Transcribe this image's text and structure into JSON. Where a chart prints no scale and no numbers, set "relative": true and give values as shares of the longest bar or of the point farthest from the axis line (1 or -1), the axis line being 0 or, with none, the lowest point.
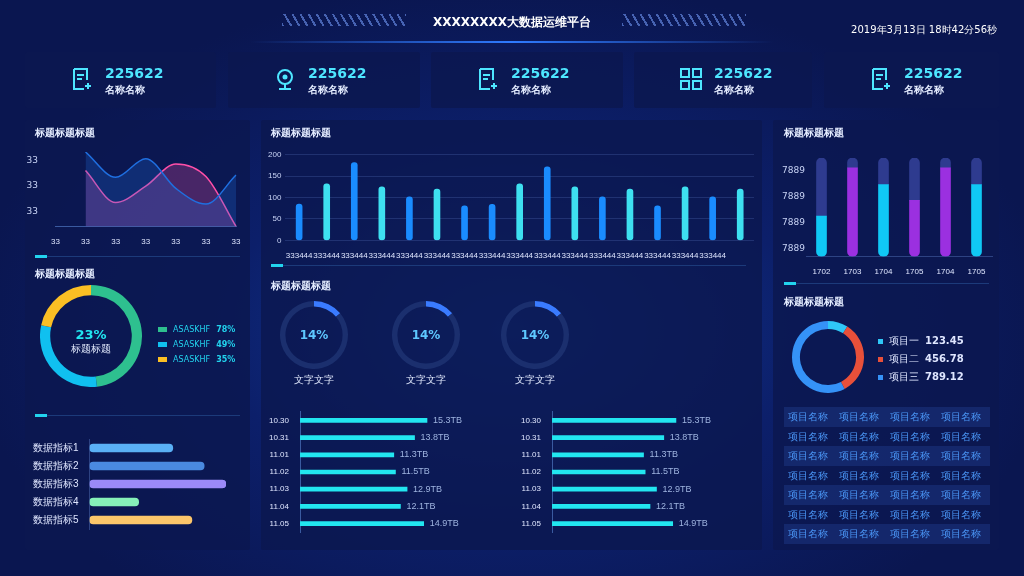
{
  "chart_data": [
    {
      "type": "other",
      "title": "XXXXXXXX大数据运维平台",
      "annotations": [
        "2019年3月13日  18时42分56秒"
      ]
    },
    {
      "type": "other",
      "annotations": [
        "225622",
        "名称名称",
        "225622",
        "名称名称",
        "225622",
        "名称名称",
        "225622",
        "名称名称",
        "225622",
        "名称名称"
      ]
    },
    {
      "type": "area",
      "title": "标题标题标题",
      "categories": [
        "33",
        "33",
        "33",
        "33",
        "33",
        "33",
        "33"
      ],
      "relative": true,
      "annotations": [
        "33",
        "33",
        "33"
      ],
      "series": [
        {
          "color": "#1f6fe0",
          "values": [
            null,
            1.0,
            0.66,
            0.91,
            0.51,
            0.3,
            0.69
          ]
        },
        {
          "color": "#ff4fa8",
          "values": [
            null,
            0.75,
            0.32,
            0.54,
            0.84,
            0.67,
            0
          ]
        }
      ]
    },
    {
      "type": "bar",
      "title": "标题标题标题",
      "categories": [
        "333444",
        "333444",
        "333444",
        "333444",
        "333444",
        "333444",
        "333444",
        "333444",
        "333444",
        "333444",
        "333444",
        "333444",
        "333444",
        "333444",
        "333444",
        "333444",
        null
      ],
      "values": [
        85,
        132,
        182,
        125,
        102,
        120,
        81,
        84,
        132,
        172,
        125,
        102,
        120,
        81,
        125,
        102,
        120
      ],
      "colors": [
        "#1a8cff",
        "#3ee0f0",
        "#1a8cff",
        "#3ee0f0",
        "#1a8cff",
        "#3ee0f0",
        "#1a8cff",
        "#1a8cff",
        "#3ee0f0",
        "#1a8cff",
        "#3ee0f0",
        "#1a8cff",
        "#3ee0f0",
        "#1a8cff",
        "#3ee0f0",
        "#1a8cff",
        "#3ee0f0"
      ],
      "ylim": [
        0,
        200
      ],
      "yticks": [
        0,
        50,
        100,
        150,
        200
      ],
      "grid": "y"
    },
    {
      "type": "bar",
      "title": "标题标题标题",
      "categories": [
        "1702",
        "1703",
        "1704",
        "1705",
        "1704",
        "1705"
      ],
      "stacked": true,
      "relative": true,
      "annotations": [
        "7889",
        "7889",
        "7889",
        "7889"
      ],
      "series": [
        {
          "colors": [
            "#10c8f5",
            "#9b30e0",
            "#10c8f5",
            "#9b30e0",
            "#9b30e0",
            "#10c8f5"
          ],
          "values": [
            0.41,
            0.9,
            0.73,
            0.57,
            0.9,
            0.73
          ]
        },
        {
          "color": "#2e3b8f",
          "values": [
            0.59,
            0.1,
            0.27,
            0.43,
            0.1,
            0.27
          ]
        }
      ]
    },
    {
      "type": "donut",
      "title": "标题标题标题",
      "categories": [
        "ASASKHF",
        "ASASKHF",
        "ASASKHF"
      ],
      "values": [
        78,
        49,
        35
      ],
      "colors": [
        "#2ec08f",
        "#10c0f0",
        "#fbbf24"
      ],
      "value_labels": [
        "78%",
        "49%",
        "35%"
      ],
      "legend": "right",
      "annotations": [
        "23%",
        "标题标题"
      ]
    },
    {
      "type": "donut",
      "title": "标题标题标题",
      "categories": [
        null,
        null
      ],
      "values": [
        14,
        86
      ],
      "colors": [
        "#3a7bff",
        "#1b2f6e"
      ],
      "annotations": [
        "14%",
        "文字文字"
      ]
    },
    {
      "type": "donut",
      "categories": [
        null,
        null
      ],
      "values": [
        14,
        86
      ],
      "colors": [
        "#3a7bff",
        "#1b2f6e"
      ],
      "annotations": [
        "14%",
        "文字文字"
      ]
    },
    {
      "type": "donut",
      "categories": [
        null,
        null
      ],
      "values": [
        14,
        86
      ],
      "colors": [
        "#3a7bff",
        "#1b2f6e"
      ],
      "annotations": [
        "14%",
        "文字文字"
      ]
    },
    {
      "type": "donut",
      "title": "标题标题标题",
      "categories": [
        "项目一",
        "项目二",
        "项目三"
      ],
      "values": [
        123.45,
        456.78,
        789.12
      ],
      "colors": [
        "#2fc7f7",
        "#e8503a",
        "#3592f7"
      ],
      "value_labels": [
        "123.45",
        "456.78",
        "789.12"
      ],
      "legend": "right"
    },
    {
      "type": "bar",
      "orientation": "horizontal",
      "relative": true,
      "categories": [
        "数据指标1",
        "数据指标2",
        "数据指标3",
        "数据指标4",
        "数据指标5"
      ],
      "values": [
        0.61,
        0.84,
        1,
        0.36,
        0.75
      ],
      "colors": [
        "#5ab0f5",
        "#4a8ae0",
        "#9b8af8",
        "#86f0b8",
        "#fcc66a"
      ]
    },
    {
      "type": "bar",
      "orientation": "horizontal",
      "categories": [
        "10.30",
        "10.31",
        "11.01",
        "11.02",
        "11.03",
        "11.04",
        "11.05"
      ],
      "values": [
        15.3,
        13.8,
        11.3,
        11.5,
        12.9,
        12.1,
        14.9
      ],
      "value_labels": [
        "15.3TB",
        "13.8TB",
        "11.3TB",
        "11.5TB",
        "12.9TB",
        "12.1TB",
        "14.9TB"
      ],
      "color": "#22e6f0",
      "tick_labels": "y"
    },
    {
      "type": "bar",
      "orientation": "horizontal",
      "categories": [
        "10.30",
        "10.31",
        "11.01",
        "11.02",
        "11.03",
        "11.04",
        "11.05"
      ],
      "values": [
        15.3,
        13.8,
        11.3,
        11.5,
        12.9,
        12.1,
        14.9
      ],
      "value_labels": [
        "15.3TB",
        "13.8TB",
        "11.3TB",
        "11.5TB",
        "12.9TB",
        "12.1TB",
        "14.9TB"
      ],
      "color": "#22e6f0",
      "tick_labels": "y"
    },
    {
      "type": "other",
      "annotations": [
        "项目名称",
        "项目名称",
        "项目名称",
        "项目名称",
        "项目名称",
        "项目名称",
        "项目名称",
        "项目名称",
        "项目名称",
        "项目名称",
        "项目名称",
        "项目名称",
        "项目名称",
        "项目名称",
        "项目名称",
        "项目名称",
        "项目名称",
        "项目名称",
        "项目名称",
        "项目名称",
        "项目名称",
        "项目名称",
        "项目名称",
        "项目名称",
        "项目名称",
        "项目名称",
        "项目名称",
        "项目名称"
      ]
    }
  ]
}
